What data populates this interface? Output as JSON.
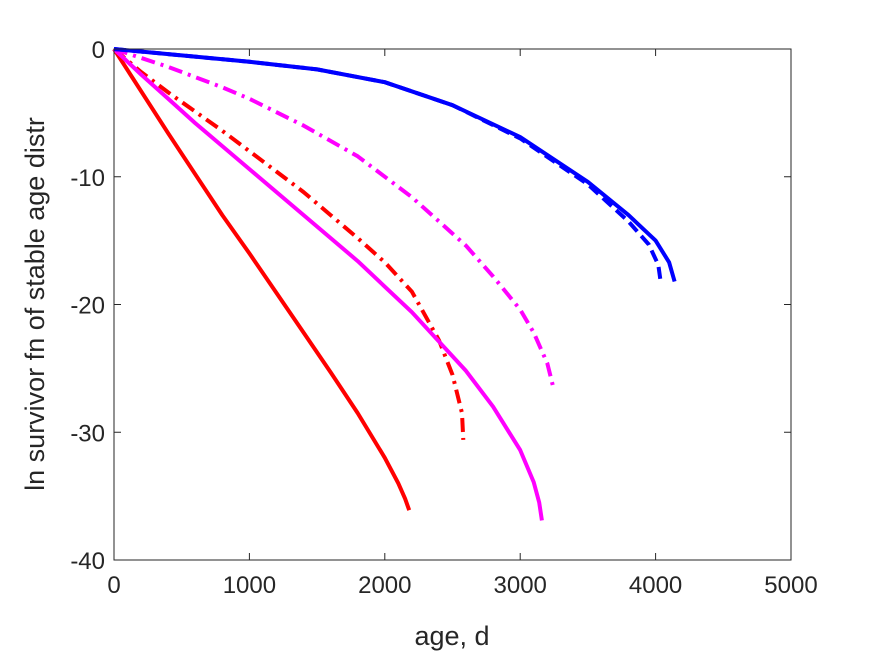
{
  "chart_data": {
    "type": "line",
    "xlabel": "age, d",
    "ylabel": "ln survivor fn of stable age distr",
    "xlim": [
      0,
      5000
    ],
    "ylim": [
      -40,
      0
    ],
    "xticks": [
      0,
      1000,
      2000,
      3000,
      4000,
      5000
    ],
    "yticks": [
      0,
      -10,
      -20,
      -30,
      -40
    ],
    "xtick_labels": [
      "0",
      "1000",
      "2000",
      "3000",
      "4000",
      "5000"
    ],
    "ytick_labels": [
      "0",
      "-10",
      "-20",
      "-30",
      "-40"
    ],
    "grid": false,
    "legend": "none",
    "series": [
      {
        "color": "#ff0000",
        "dash": "solid",
        "x": [
          0,
          200,
          400,
          600,
          800,
          1000,
          1200,
          1400,
          1600,
          1800,
          2000,
          2100,
          2150,
          2180
        ],
        "y": [
          0,
          -3.3,
          -6.6,
          -9.8,
          -13.0,
          -16.0,
          -19.1,
          -22.2,
          -25.3,
          -28.5,
          -32.0,
          -34.0,
          -35.2,
          -36.1
        ]
      },
      {
        "color": "#ff0000",
        "dash": "dashdot",
        "x": [
          0,
          200,
          400,
          600,
          800,
          1000,
          1200,
          1400,
          1600,
          1800,
          2000,
          2200,
          2400,
          2500,
          2570,
          2580
        ],
        "y": [
          0,
          -1.8,
          -3.4,
          -4.9,
          -6.4,
          -8.0,
          -9.6,
          -11.2,
          -13.0,
          -14.8,
          -16.7,
          -19.0,
          -22.8,
          -25.5,
          -28.5,
          -30.6
        ]
      },
      {
        "color": "#ff00ff",
        "dash": "solid",
        "x": [
          0,
          200,
          400,
          600,
          800,
          1000,
          1400,
          1800,
          2200,
          2600,
          2800,
          3000,
          3100,
          3140,
          3160
        ],
        "y": [
          0,
          -2.0,
          -3.9,
          -5.8,
          -7.6,
          -9.4,
          -13.0,
          -16.6,
          -20.6,
          -25.2,
          -28.0,
          -31.4,
          -33.9,
          -35.5,
          -36.9
        ]
      },
      {
        "color": "#ff00ff",
        "dash": "dashdot",
        "x": [
          0,
          200,
          400,
          600,
          800,
          1000,
          1400,
          1800,
          2200,
          2600,
          2800,
          3000,
          3100,
          3200,
          3240
        ],
        "y": [
          0,
          -0.7,
          -1.4,
          -2.2,
          -3.0,
          -3.9,
          -6.0,
          -8.4,
          -11.6,
          -15.4,
          -17.8,
          -20.4,
          -22.2,
          -24.6,
          -26.3
        ]
      },
      {
        "color": "#0000ff",
        "dash": "solid",
        "x": [
          0,
          500,
          1000,
          1500,
          2000,
          2500,
          3000,
          3500,
          3800,
          4000,
          4100,
          4140
        ],
        "y": [
          0,
          -0.5,
          -1.0,
          -1.6,
          -2.6,
          -4.4,
          -6.9,
          -10.4,
          -13.0,
          -15.0,
          -16.7,
          -18.2
        ]
      },
      {
        "color": "#0000ff",
        "dash": "dashed",
        "x": [
          0,
          500,
          1000,
          1500,
          2000,
          2500,
          3000,
          3500,
          3800,
          3950,
          4020,
          4040
        ],
        "y": [
          0,
          -0.5,
          -1.0,
          -1.6,
          -2.6,
          -4.4,
          -7.0,
          -10.6,
          -13.5,
          -15.3,
          -16.9,
          -18.4
        ]
      }
    ]
  }
}
